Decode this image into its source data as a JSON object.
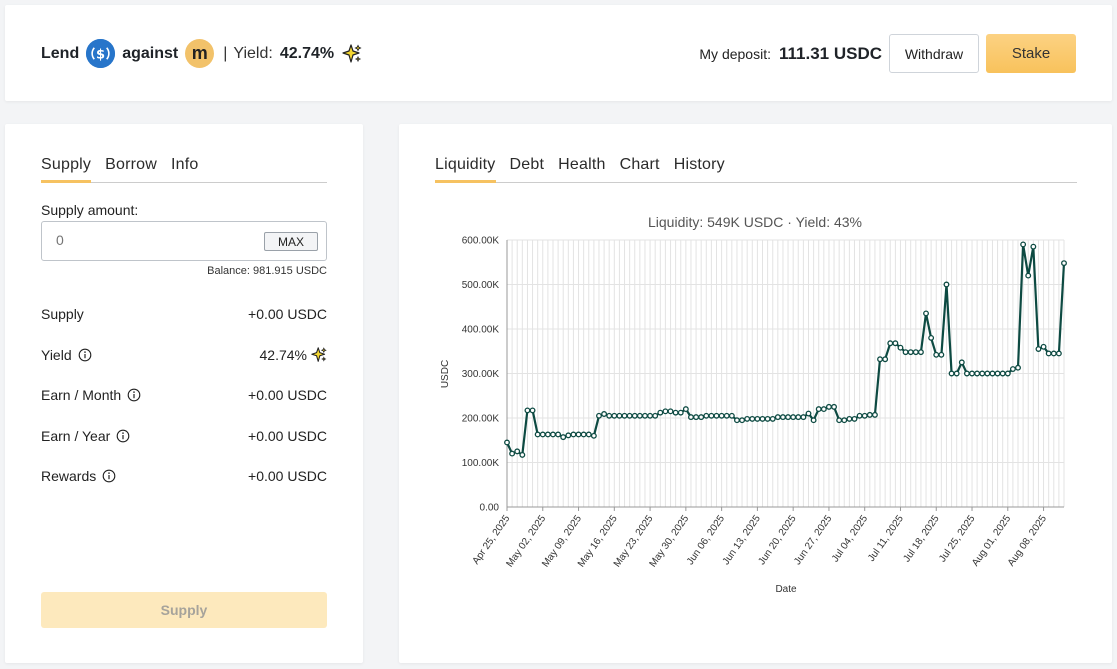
{
  "header": {
    "lend_label": "Lend",
    "against_label": "against",
    "m_letter": "m",
    "separator": "|",
    "yield_label": "Yield:",
    "yield_value": "42.74%",
    "deposit_label": "My deposit:",
    "deposit_value": "111.31 USDC",
    "withdraw_label": "Withdraw",
    "stake_label": "Stake"
  },
  "left": {
    "tabs": [
      {
        "label": "Supply"
      },
      {
        "label": "Borrow"
      },
      {
        "label": "Info"
      }
    ],
    "supply_amount_label": "Supply amount:",
    "input_placeholder": "0",
    "max_label": "MAX",
    "balance": "Balance: 981.915 USDC",
    "rows": [
      {
        "label": "Supply",
        "value": "+0.00 USDC"
      },
      {
        "label": "Yield",
        "value": "42.74%"
      },
      {
        "label": "Earn / Month",
        "value": "+0.00 USDC"
      },
      {
        "label": "Earn / Year",
        "value": "+0.00 USDC"
      },
      {
        "label": "Rewards",
        "value": "+0.00 USDC"
      }
    ],
    "supply_button": "Supply"
  },
  "right": {
    "tabs": [
      {
        "label": "Liquidity"
      },
      {
        "label": "Debt"
      },
      {
        "label": "Health"
      },
      {
        "label": "Chart"
      },
      {
        "label": "History"
      }
    ]
  },
  "colors": {
    "accent": "#f6c261",
    "line": "#0d4a42",
    "usdc": "#2775ca",
    "m_coin": "#f2c26a",
    "sparkle": "#f5d730"
  },
  "icons": {
    "usdc": "dollar-coin-icon",
    "m": "m-coin-icon",
    "sparkle": "sparkle-icon",
    "info": "info-circle-icon"
  },
  "chart_data": {
    "type": "line",
    "title": "Liquidity: 549K USDC · Yield: 43%",
    "xlabel": "Date",
    "ylabel": "USDC",
    "ylim": [
      0,
      600000
    ],
    "yticks": [
      "0.00",
      "100.00K",
      "200.00K",
      "300.00K",
      "400.00K",
      "500.00K",
      "600.00K"
    ],
    "xticks": [
      "Apr 25, 2025",
      "May 02, 2025",
      "May 09, 2025",
      "May 16, 2025",
      "May 23, 2025",
      "May 30, 2025",
      "Jun 06, 2025",
      "Jun 13, 2025",
      "Jun 20, 2025",
      "Jun 27, 2025",
      "Jul 04, 2025",
      "Jul 11, 2025",
      "Jul 18, 2025",
      "Jul 25, 2025",
      "Aug 01, 2025",
      "Aug 08, 2025"
    ],
    "grid": true,
    "series": [
      {
        "x": [
          "2025-04-25",
          "2025-04-26",
          "2025-04-27",
          "2025-04-28",
          "2025-04-29",
          "2025-04-30",
          "2025-05-01",
          "2025-05-02",
          "2025-05-03",
          "2025-05-04",
          "2025-05-05",
          "2025-05-06",
          "2025-05-07",
          "2025-05-08",
          "2025-05-09",
          "2025-05-10",
          "2025-05-11",
          "2025-05-12",
          "2025-05-13",
          "2025-05-14",
          "2025-05-15",
          "2025-05-16",
          "2025-05-17",
          "2025-05-18",
          "2025-05-19",
          "2025-05-20",
          "2025-05-21",
          "2025-05-22",
          "2025-05-23",
          "2025-05-24",
          "2025-05-25",
          "2025-05-26",
          "2025-05-27",
          "2025-05-28",
          "2025-05-29",
          "2025-05-30",
          "2025-05-31",
          "2025-06-01",
          "2025-06-02",
          "2025-06-03",
          "2025-06-04",
          "2025-06-05",
          "2025-06-06",
          "2025-06-07",
          "2025-06-08",
          "2025-06-09",
          "2025-06-10",
          "2025-06-11",
          "2025-06-12",
          "2025-06-13",
          "2025-06-14",
          "2025-06-15",
          "2025-06-16",
          "2025-06-17",
          "2025-06-18",
          "2025-06-19",
          "2025-06-20",
          "2025-06-21",
          "2025-06-22",
          "2025-06-23",
          "2025-06-24",
          "2025-06-25",
          "2025-06-26",
          "2025-06-27",
          "2025-06-28",
          "2025-06-29",
          "2025-06-30",
          "2025-07-01",
          "2025-07-02",
          "2025-07-03",
          "2025-07-04",
          "2025-07-05",
          "2025-07-06",
          "2025-07-07",
          "2025-07-08",
          "2025-07-09",
          "2025-07-10",
          "2025-07-11",
          "2025-07-12",
          "2025-07-13",
          "2025-07-14",
          "2025-07-15",
          "2025-07-16",
          "2025-07-17",
          "2025-07-18",
          "2025-07-19",
          "2025-07-20",
          "2025-07-21",
          "2025-07-22",
          "2025-07-23",
          "2025-07-24",
          "2025-07-25",
          "2025-07-26",
          "2025-07-27",
          "2025-07-28",
          "2025-07-29",
          "2025-07-30",
          "2025-07-31",
          "2025-08-01",
          "2025-08-02",
          "2025-08-03",
          "2025-08-04",
          "2025-08-05",
          "2025-08-06",
          "2025-08-07",
          "2025-08-08",
          "2025-08-09",
          "2025-08-10",
          "2025-08-11",
          "2025-08-12"
        ],
        "values": [
          145000,
          120000,
          125000,
          117000,
          217000,
          217000,
          163000,
          163000,
          163000,
          163000,
          163000,
          157000,
          161000,
          163000,
          163000,
          163000,
          163000,
          160000,
          205000,
          209000,
          205000,
          205000,
          205000,
          205000,
          205000,
          205000,
          205000,
          205000,
          205000,
          205000,
          212000,
          215000,
          215000,
          212000,
          212000,
          220000,
          202000,
          202000,
          202000,
          205000,
          205000,
          205000,
          205000,
          205000,
          205000,
          195000,
          195000,
          198000,
          198000,
          198000,
          198000,
          198000,
          198000,
          202000,
          202000,
          202000,
          202000,
          202000,
          202000,
          210000,
          195000,
          220000,
          220000,
          225000,
          225000,
          195000,
          195000,
          198000,
          198000,
          205000,
          205000,
          207000,
          207000,
          332000,
          332000,
          368000,
          368000,
          358000,
          348000,
          348000,
          348000,
          348000,
          435000,
          380000,
          342000,
          342000,
          500000,
          300000,
          300000,
          325000,
          300000,
          300000,
          300000,
          300000,
          300000,
          300000,
          300000,
          300000,
          300000,
          310000,
          313000,
          590000,
          520000,
          585000,
          355000,
          360000,
          345000,
          345000,
          345000,
          548000
        ]
      }
    ]
  }
}
